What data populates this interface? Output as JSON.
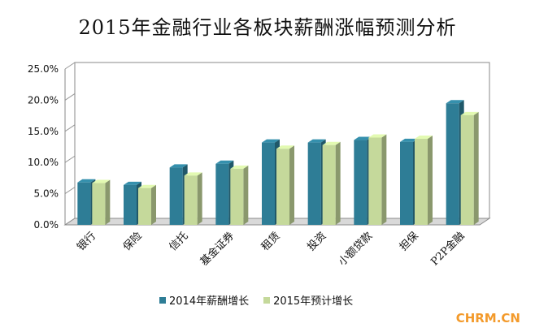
{
  "chart_data": {
    "type": "bar",
    "title": "2015年金融行业各板块薪酬涨幅预测分析",
    "categories": [
      "银行",
      "保险",
      "信托",
      "基金证券",
      "租赁",
      "投资",
      "小额贷款",
      "担保",
      "P2P金融"
    ],
    "series": [
      {
        "name": "2014年薪酬增长",
        "color": "#2e7d96",
        "values": [
          6.8,
          6.4,
          9.2,
          9.8,
          13.2,
          13.2,
          13.6,
          13.3,
          19.5
        ]
      },
      {
        "name": "2015年预计增长",
        "color": "#c5d99b",
        "values": [
          6.7,
          5.9,
          7.9,
          9.0,
          12.2,
          12.8,
          14.0,
          13.8,
          17.6
        ]
      }
    ],
    "y_ticks": [
      "0.0%",
      "5.0%",
      "10.0%",
      "15.0%",
      "20.0%",
      "25.0%"
    ],
    "ylim": [
      0,
      25
    ],
    "legend_position": "bottom",
    "grid": true
  },
  "watermark": "CHRM.CN"
}
